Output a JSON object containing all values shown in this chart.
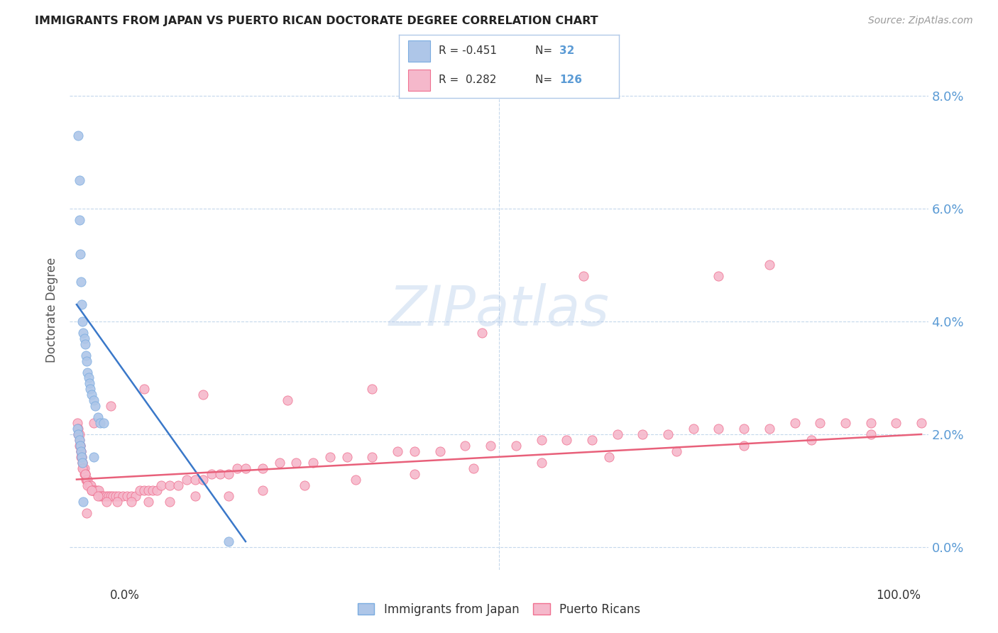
{
  "title": "IMMIGRANTS FROM JAPAN VS PUERTO RICAN DOCTORATE DEGREE CORRELATION CHART",
  "source": "Source: ZipAtlas.com",
  "ylabel": "Doctorate Degree",
  "color_japan": "#aec6e8",
  "color_pr": "#f5b8cb",
  "color_japan_edge": "#7aace0",
  "color_pr_edge": "#f07090",
  "color_japan_line": "#3a78c9",
  "color_pr_line": "#e8607a",
  "color_ytick": "#5b9bd5",
  "japan_x": [
    0.002,
    0.003,
    0.003,
    0.004,
    0.005,
    0.006,
    0.007,
    0.008,
    0.009,
    0.01,
    0.011,
    0.012,
    0.013,
    0.014,
    0.015,
    0.016,
    0.018,
    0.02,
    0.022,
    0.025,
    0.028,
    0.032,
    0.001,
    0.002,
    0.003,
    0.004,
    0.005,
    0.006,
    0.007,
    0.008,
    0.18,
    0.02
  ],
  "japan_y": [
    0.073,
    0.065,
    0.058,
    0.052,
    0.047,
    0.043,
    0.04,
    0.038,
    0.037,
    0.036,
    0.034,
    0.033,
    0.031,
    0.03,
    0.029,
    0.028,
    0.027,
    0.026,
    0.025,
    0.023,
    0.022,
    0.022,
    0.021,
    0.02,
    0.019,
    0.018,
    0.017,
    0.016,
    0.015,
    0.008,
    0.001,
    0.016
  ],
  "pr_x": [
    0.001,
    0.002,
    0.002,
    0.003,
    0.003,
    0.004,
    0.004,
    0.005,
    0.005,
    0.006,
    0.006,
    0.007,
    0.007,
    0.008,
    0.008,
    0.009,
    0.009,
    0.01,
    0.01,
    0.011,
    0.012,
    0.013,
    0.014,
    0.015,
    0.016,
    0.017,
    0.018,
    0.019,
    0.02,
    0.022,
    0.024,
    0.026,
    0.028,
    0.03,
    0.032,
    0.035,
    0.038,
    0.04,
    0.043,
    0.046,
    0.05,
    0.055,
    0.06,
    0.065,
    0.07,
    0.075,
    0.08,
    0.085,
    0.09,
    0.095,
    0.1,
    0.11,
    0.12,
    0.13,
    0.14,
    0.15,
    0.16,
    0.17,
    0.18,
    0.19,
    0.2,
    0.22,
    0.24,
    0.26,
    0.28,
    0.3,
    0.32,
    0.35,
    0.38,
    0.4,
    0.43,
    0.46,
    0.49,
    0.52,
    0.55,
    0.58,
    0.61,
    0.64,
    0.67,
    0.7,
    0.73,
    0.76,
    0.79,
    0.82,
    0.85,
    0.88,
    0.91,
    0.94,
    0.97,
    1.0,
    0.003,
    0.005,
    0.007,
    0.01,
    0.013,
    0.018,
    0.025,
    0.035,
    0.048,
    0.065,
    0.085,
    0.11,
    0.14,
    0.18,
    0.22,
    0.27,
    0.33,
    0.4,
    0.47,
    0.55,
    0.63,
    0.71,
    0.79,
    0.87,
    0.94,
    0.6,
    0.76,
    0.82,
    0.48,
    0.35,
    0.25,
    0.15,
    0.08,
    0.04,
    0.02,
    0.012
  ],
  "pr_y": [
    0.022,
    0.021,
    0.02,
    0.02,
    0.019,
    0.018,
    0.018,
    0.017,
    0.017,
    0.016,
    0.016,
    0.015,
    0.015,
    0.014,
    0.014,
    0.014,
    0.013,
    0.013,
    0.013,
    0.012,
    0.012,
    0.012,
    0.011,
    0.011,
    0.011,
    0.011,
    0.01,
    0.01,
    0.01,
    0.01,
    0.01,
    0.01,
    0.009,
    0.009,
    0.009,
    0.009,
    0.009,
    0.009,
    0.009,
    0.009,
    0.009,
    0.009,
    0.009,
    0.009,
    0.009,
    0.01,
    0.01,
    0.01,
    0.01,
    0.01,
    0.011,
    0.011,
    0.011,
    0.012,
    0.012,
    0.012,
    0.013,
    0.013,
    0.013,
    0.014,
    0.014,
    0.014,
    0.015,
    0.015,
    0.015,
    0.016,
    0.016,
    0.016,
    0.017,
    0.017,
    0.017,
    0.018,
    0.018,
    0.018,
    0.019,
    0.019,
    0.019,
    0.02,
    0.02,
    0.02,
    0.021,
    0.021,
    0.021,
    0.021,
    0.022,
    0.022,
    0.022,
    0.022,
    0.022,
    0.022,
    0.018,
    0.016,
    0.014,
    0.013,
    0.011,
    0.01,
    0.009,
    0.008,
    0.008,
    0.008,
    0.008,
    0.008,
    0.009,
    0.009,
    0.01,
    0.011,
    0.012,
    0.013,
    0.014,
    0.015,
    0.016,
    0.017,
    0.018,
    0.019,
    0.02,
    0.048,
    0.048,
    0.05,
    0.038,
    0.028,
    0.026,
    0.027,
    0.028,
    0.025,
    0.022,
    0.006
  ],
  "japan_line_x": [
    0.0,
    0.2
  ],
  "japan_line_y": [
    0.043,
    0.001
  ],
  "pr_line_x": [
    0.0,
    1.0
  ],
  "pr_line_y": [
    0.012,
    0.02
  ],
  "ytick_vals": [
    0.0,
    0.02,
    0.04,
    0.06,
    0.08
  ],
  "ytick_labels": [
    "0.0%",
    "2.0%",
    "4.0%",
    "6.0%",
    "8.0%"
  ],
  "xlim": [
    -0.008,
    1.008
  ],
  "ylim": [
    -0.004,
    0.088
  ]
}
